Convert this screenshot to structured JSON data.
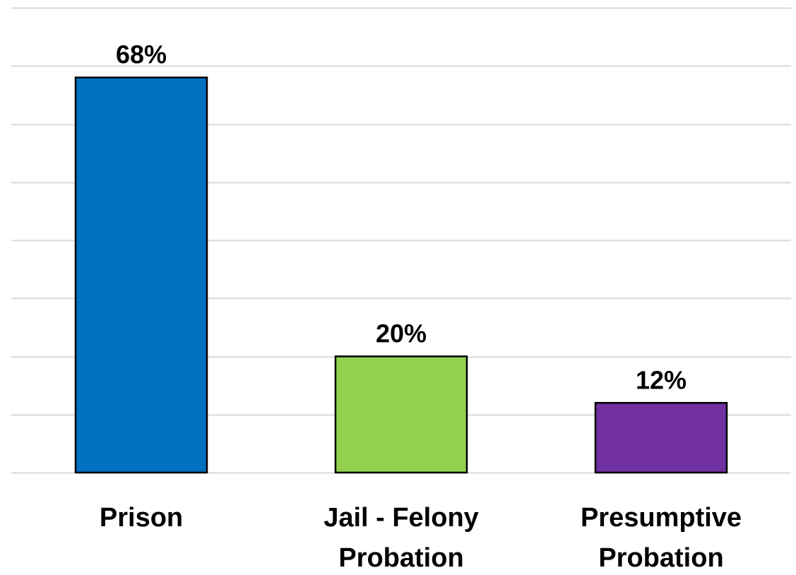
{
  "chart_data": {
    "type": "bar",
    "categories": [
      "Prison",
      "Jail - Felony Probation",
      "Presumptive Probation"
    ],
    "category_lines": [
      [
        "Prison"
      ],
      [
        "Jail - Felony",
        "Probation"
      ],
      [
        "Presumptive",
        "Probation"
      ]
    ],
    "values": [
      68,
      20,
      12
    ],
    "data_labels": [
      "68%",
      "20%",
      "12%"
    ],
    "colors": [
      "#0070c0",
      "#92d050",
      "#7030a0"
    ],
    "bar_outline_color": "#000000",
    "gridline_color": "#d9d9d9",
    "ylim": [
      0,
      80
    ],
    "grid": true,
    "y_axis_visible": false,
    "title": "",
    "xlabel": "",
    "ylabel": ""
  }
}
